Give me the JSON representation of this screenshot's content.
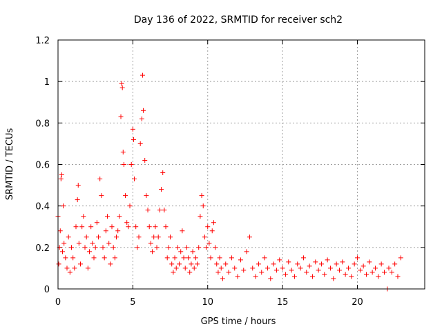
{
  "chart_data": {
    "type": "scatter",
    "title": "Day 136 of 2022, SRMTID for receiver sch2",
    "xlabel": "GPS time / hours",
    "ylabel": "SRMTID / TECUs",
    "xlim": [
      0,
      24.5
    ],
    "ylim": [
      0,
      1.2
    ],
    "xticks": [
      0,
      5,
      10,
      15,
      20
    ],
    "xtick_labels": [
      "0",
      "5",
      "10",
      "15",
      "20"
    ],
    "yticks": [
      0,
      0.2,
      0.4,
      0.6,
      0.8,
      1.0,
      1.2
    ],
    "ytick_labels": [
      "0",
      "0.2",
      "0.4",
      "0.6",
      "0.8",
      "1",
      "1.2"
    ],
    "grid": true,
    "marker": "+",
    "color": "#ff0000",
    "series": [
      {
        "name": "SRMTID",
        "points": [
          [
            0.0,
            0.35
          ],
          [
            0.05,
            0.12
          ],
          [
            0.1,
            0.2
          ],
          [
            0.15,
            0.28
          ],
          [
            0.2,
            0.53
          ],
          [
            0.25,
            0.55
          ],
          [
            0.3,
            0.18
          ],
          [
            0.35,
            0.4
          ],
          [
            0.4,
            0.22
          ],
          [
            0.5,
            0.15
          ],
          [
            0.6,
            0.1
          ],
          [
            0.7,
            0.25
          ],
          [
            0.8,
            0.08
          ],
          [
            0.9,
            0.2
          ],
          [
            1.0,
            0.15
          ],
          [
            1.1,
            0.1
          ],
          [
            1.2,
            0.3
          ],
          [
            1.3,
            0.43
          ],
          [
            1.35,
            0.5
          ],
          [
            1.4,
            0.22
          ],
          [
            1.5,
            0.12
          ],
          [
            1.6,
            0.3
          ],
          [
            1.7,
            0.35
          ],
          [
            1.8,
            0.2
          ],
          [
            1.9,
            0.25
          ],
          [
            2.0,
            0.1
          ],
          [
            2.1,
            0.18
          ],
          [
            2.2,
            0.3
          ],
          [
            2.3,
            0.22
          ],
          [
            2.4,
            0.15
          ],
          [
            2.5,
            0.2
          ],
          [
            2.6,
            0.32
          ],
          [
            2.7,
            0.25
          ],
          [
            2.8,
            0.53
          ],
          [
            2.9,
            0.45
          ],
          [
            3.0,
            0.2
          ],
          [
            3.1,
            0.15
          ],
          [
            3.2,
            0.28
          ],
          [
            3.3,
            0.35
          ],
          [
            3.4,
            0.22
          ],
          [
            3.5,
            0.12
          ],
          [
            3.6,
            0.3
          ],
          [
            3.7,
            0.2
          ],
          [
            3.8,
            0.15
          ],
          [
            3.9,
            0.25
          ],
          [
            4.0,
            0.28
          ],
          [
            4.1,
            0.35
          ],
          [
            4.2,
            0.83
          ],
          [
            4.25,
            0.99
          ],
          [
            4.3,
            0.97
          ],
          [
            4.35,
            0.66
          ],
          [
            4.4,
            0.6
          ],
          [
            4.5,
            0.45
          ],
          [
            4.6,
            0.32
          ],
          [
            4.7,
            0.3
          ],
          [
            4.8,
            0.4
          ],
          [
            4.9,
            0.6
          ],
          [
            5.0,
            0.77
          ],
          [
            5.05,
            0.72
          ],
          [
            5.1,
            0.53
          ],
          [
            5.2,
            0.3
          ],
          [
            5.3,
            0.2
          ],
          [
            5.4,
            0.25
          ],
          [
            5.5,
            0.7
          ],
          [
            5.6,
            0.82
          ],
          [
            5.65,
            1.03
          ],
          [
            5.7,
            0.86
          ],
          [
            5.8,
            0.62
          ],
          [
            5.9,
            0.45
          ],
          [
            6.0,
            0.38
          ],
          [
            6.1,
            0.3
          ],
          [
            6.2,
            0.22
          ],
          [
            6.3,
            0.18
          ],
          [
            6.4,
            0.25
          ],
          [
            6.5,
            0.3
          ],
          [
            6.6,
            0.2
          ],
          [
            6.7,
            0.25
          ],
          [
            6.8,
            0.38
          ],
          [
            6.9,
            0.48
          ],
          [
            7.0,
            0.56
          ],
          [
            7.1,
            0.38
          ],
          [
            7.2,
            0.3
          ],
          [
            7.3,
            0.15
          ],
          [
            7.4,
            0.2
          ],
          [
            7.5,
            0.25
          ],
          [
            7.6,
            0.12
          ],
          [
            7.7,
            0.08
          ],
          [
            7.8,
            0.15
          ],
          [
            7.9,
            0.1
          ],
          [
            8.0,
            0.2
          ],
          [
            8.1,
            0.12
          ],
          [
            8.2,
            0.18
          ],
          [
            8.3,
            0.28
          ],
          [
            8.4,
            0.15
          ],
          [
            8.5,
            0.1
          ],
          [
            8.6,
            0.2
          ],
          [
            8.7,
            0.15
          ],
          [
            8.8,
            0.08
          ],
          [
            8.9,
            0.12
          ],
          [
            9.0,
            0.18
          ],
          [
            9.1,
            0.1
          ],
          [
            9.2,
            0.15
          ],
          [
            9.3,
            0.12
          ],
          [
            9.4,
            0.2
          ],
          [
            9.5,
            0.35
          ],
          [
            9.6,
            0.45
          ],
          [
            9.7,
            0.4
          ],
          [
            9.8,
            0.25
          ],
          [
            9.9,
            0.2
          ],
          [
            10.0,
            0.3
          ],
          [
            10.1,
            0.22
          ],
          [
            10.2,
            0.15
          ],
          [
            10.3,
            0.28
          ],
          [
            10.4,
            0.32
          ],
          [
            10.5,
            0.2
          ],
          [
            10.6,
            0.12
          ],
          [
            10.7,
            0.08
          ],
          [
            10.8,
            0.15
          ],
          [
            10.9,
            0.1
          ],
          [
            11.0,
            0.05
          ],
          [
            11.2,
            0.12
          ],
          [
            11.4,
            0.08
          ],
          [
            11.6,
            0.15
          ],
          [
            11.8,
            0.1
          ],
          [
            12.0,
            0.06
          ],
          [
            12.2,
            0.14
          ],
          [
            12.4,
            0.09
          ],
          [
            12.6,
            0.18
          ],
          [
            12.8,
            0.25
          ],
          [
            13.0,
            0.1
          ],
          [
            13.2,
            0.06
          ],
          [
            13.4,
            0.12
          ],
          [
            13.6,
            0.08
          ],
          [
            13.8,
            0.15
          ],
          [
            14.0,
            0.1
          ],
          [
            14.2,
            0.05
          ],
          [
            14.4,
            0.12
          ],
          [
            14.6,
            0.09
          ],
          [
            14.8,
            0.14
          ],
          [
            15.0,
            0.1
          ],
          [
            15.2,
            0.07
          ],
          [
            15.4,
            0.13
          ],
          [
            15.6,
            0.09
          ],
          [
            15.8,
            0.06
          ],
          [
            16.0,
            0.12
          ],
          [
            16.2,
            0.1
          ],
          [
            16.4,
            0.15
          ],
          [
            16.6,
            0.08
          ],
          [
            16.8,
            0.11
          ],
          [
            17.0,
            0.06
          ],
          [
            17.2,
            0.13
          ],
          [
            17.4,
            0.09
          ],
          [
            17.6,
            0.12
          ],
          [
            17.8,
            0.07
          ],
          [
            18.0,
            0.14
          ],
          [
            18.2,
            0.1
          ],
          [
            18.4,
            0.05
          ],
          [
            18.6,
            0.12
          ],
          [
            18.8,
            0.09
          ],
          [
            19.0,
            0.13
          ],
          [
            19.2,
            0.07
          ],
          [
            19.4,
            0.1
          ],
          [
            19.6,
            0.06
          ],
          [
            19.8,
            0.12
          ],
          [
            20.0,
            0.15
          ],
          [
            20.2,
            0.09
          ],
          [
            20.4,
            0.11
          ],
          [
            20.6,
            0.07
          ],
          [
            20.8,
            0.13
          ],
          [
            21.0,
            0.08
          ],
          [
            21.2,
            0.1
          ],
          [
            21.4,
            0.06
          ],
          [
            21.6,
            0.12
          ],
          [
            21.8,
            0.08
          ],
          [
            22.0,
            0.0
          ],
          [
            22.1,
            0.1
          ],
          [
            22.3,
            0.08
          ],
          [
            22.5,
            0.12
          ],
          [
            22.7,
            0.06
          ],
          [
            22.9,
            0.15
          ]
        ]
      }
    ]
  }
}
